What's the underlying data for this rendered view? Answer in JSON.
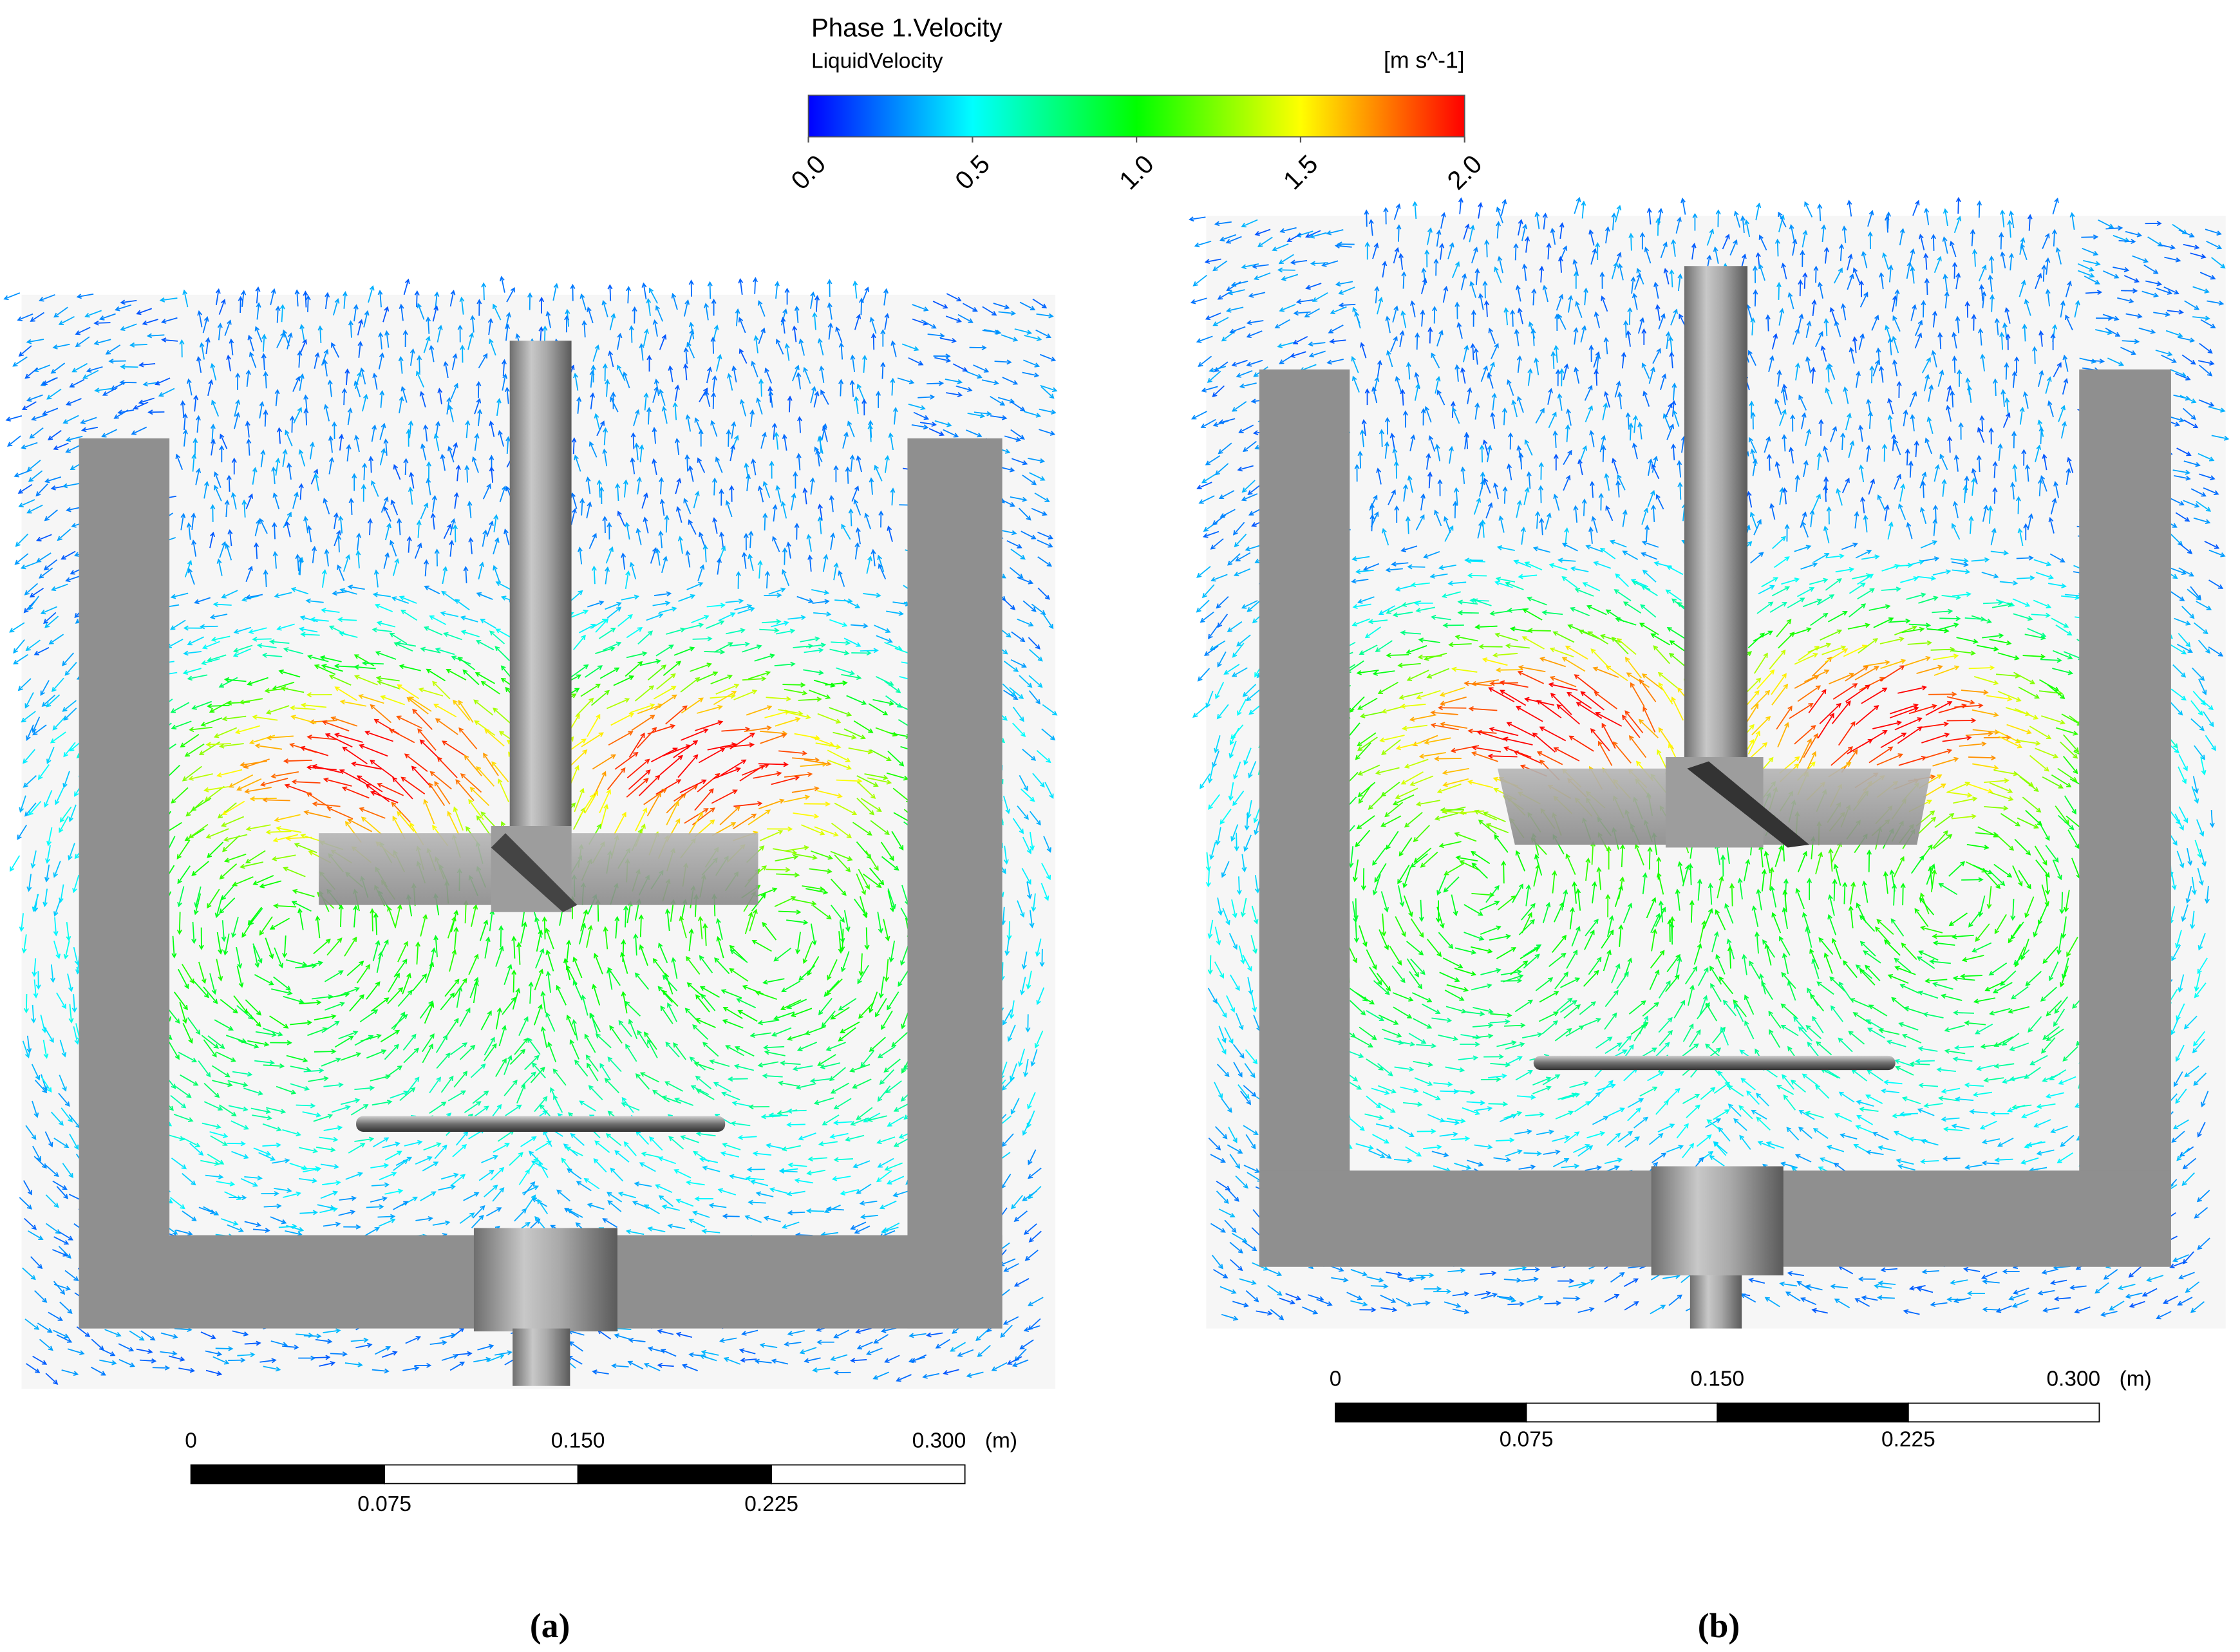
{
  "colorbar": {
    "title": "Phase 1.Velocity",
    "variable": "LiquidVelocity",
    "unit": "[m s^-1]",
    "colors": [
      "#0000ff",
      "#00ffff",
      "#00ff00",
      "#ffff00",
      "#ff0000"
    ],
    "ticks": [
      {
        "value": 0,
        "label": "0.0"
      },
      {
        "value": 0.5,
        "label": "0.5"
      },
      {
        "value": 1,
        "label": "1.0"
      },
      {
        "value": 1.5,
        "label": "1.5"
      },
      {
        "value": 2,
        "label": "2.0"
      }
    ]
  },
  "panels": [
    {
      "caption": "(a)",
      "unit": "(m)",
      "top_ticks": [
        {
          "value": 0,
          "label": "0"
        },
        {
          "value": 0.15,
          "label": "0.150"
        },
        {
          "value": 0.3,
          "label": "0.300"
        }
      ],
      "bottom_ticks": [
        {
          "value": 0.075,
          "label": "0.075"
        },
        {
          "value": 0.225,
          "label": "0.225"
        }
      ]
    },
    {
      "caption": "(b)",
      "unit": "(m)",
      "top_ticks": [
        {
          "value": 0,
          "label": "0"
        },
        {
          "value": 0.15,
          "label": "0.150"
        },
        {
          "value": 0.3,
          "label": "0.300"
        }
      ],
      "bottom_ticks": [
        {
          "value": 0.075,
          "label": "0.075"
        },
        {
          "value": 0.225,
          "label": "0.225"
        }
      ]
    }
  ]
}
